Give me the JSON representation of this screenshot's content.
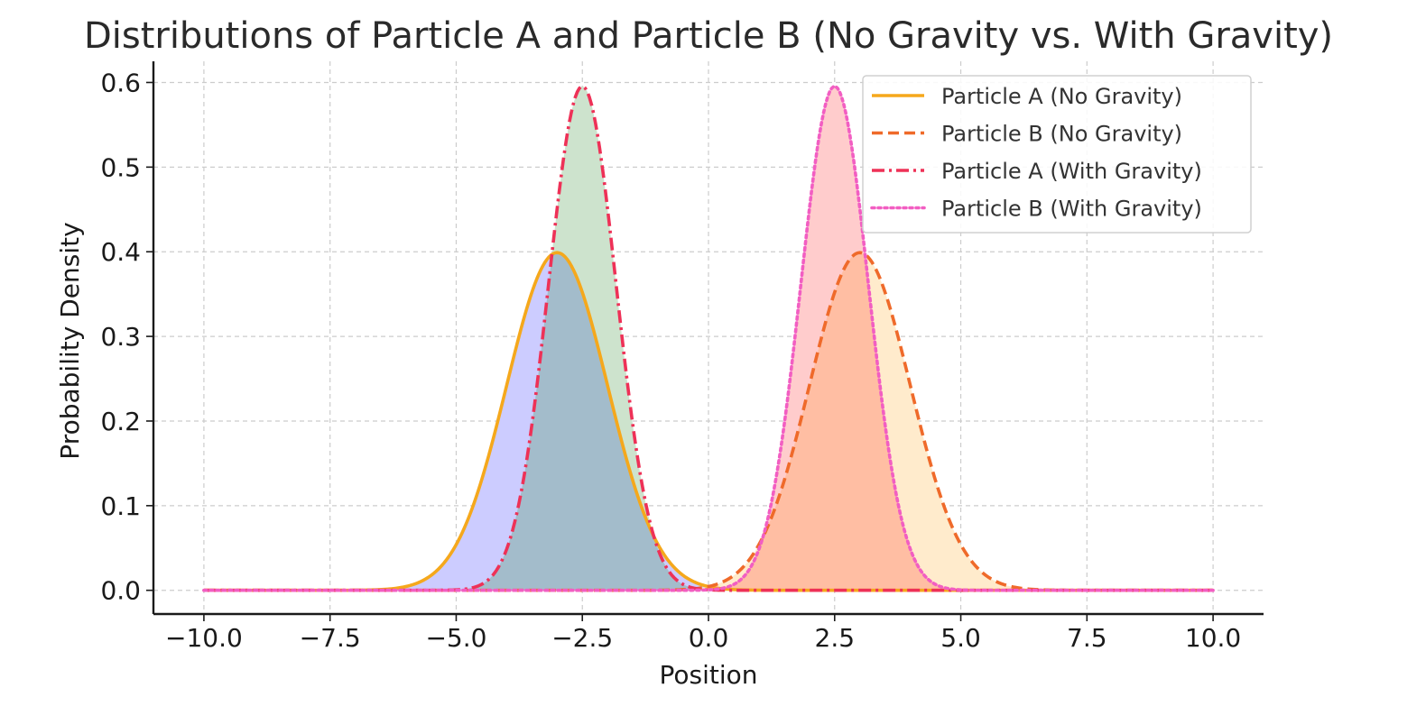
{
  "chart_data": {
    "type": "line",
    "title": "Distributions of Particle A and Particle B (No Gravity vs. With Gravity)",
    "xlabel": "Position",
    "ylabel": "Probability Density",
    "xlim": [
      -11,
      11
    ],
    "ylim": [
      -0.028,
      0.625
    ],
    "xticks": [
      -10.0,
      -7.5,
      -5.0,
      -2.5,
      0.0,
      2.5,
      5.0,
      7.5,
      10.0
    ],
    "xtick_labels": [
      "−10.0",
      "−7.5",
      "−5.0",
      "−2.5",
      "0.0",
      "2.5",
      "5.0",
      "7.5",
      "10.0"
    ],
    "yticks": [
      0.0,
      0.1,
      0.2,
      0.3,
      0.4,
      0.5,
      0.6
    ],
    "ytick_labels": [
      "0.0",
      "0.1",
      "0.2",
      "0.3",
      "0.4",
      "0.5",
      "0.6"
    ],
    "grid": true,
    "legend_position": "top-right",
    "x_range": [
      -10,
      10
    ],
    "series": [
      {
        "name": "Particle A (No Gravity)",
        "mean": -3.0,
        "std": 1.0,
        "color": "#f5a81c",
        "dash": "solid",
        "fill": "#ccccff"
      },
      {
        "name": "Particle B (No Gravity)",
        "mean": 3.0,
        "std": 1.0,
        "color": "#ef6a2a",
        "dash": "dashed",
        "fill": "#ffebcc"
      },
      {
        "name": "Particle A (With Gravity)",
        "mean": -2.5,
        "std": 0.67,
        "color": "#ee3157",
        "dash": "dashdot",
        "fill": "#cde3cd"
      },
      {
        "name": "Particle B (With Gravity)",
        "mean": 2.5,
        "std": 0.67,
        "color": "#f25ec2",
        "dash": "dotted",
        "fill": "#ffcccc"
      }
    ],
    "overlap_colors": {
      "a_overlap": "#a3bccb",
      "b_overlap": "#ffbea3"
    }
  }
}
